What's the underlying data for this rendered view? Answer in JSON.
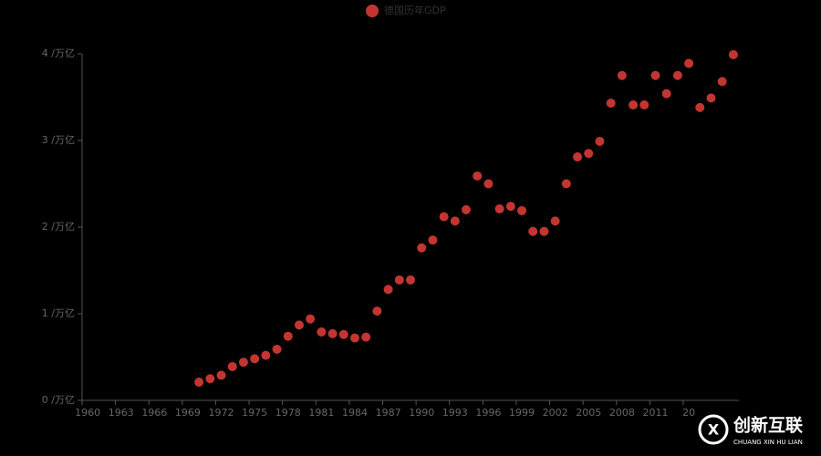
{
  "chart_data": {
    "type": "scatter",
    "categories": [
      "1960",
      null,
      null,
      "1963",
      null,
      null,
      "1966",
      null,
      null,
      "1969",
      null,
      null,
      "1972",
      null,
      null,
      "1975",
      null,
      null,
      "1978",
      null,
      null,
      "1981",
      null,
      null,
      "1984",
      null,
      null,
      "1987",
      null,
      null,
      "1990",
      null,
      null,
      "1993",
      null,
      null,
      "1996",
      null,
      null,
      "1999",
      null,
      null,
      "2002",
      null,
      null,
      "2005",
      null,
      null,
      "2008",
      null,
      null,
      "2011",
      null,
      null,
      "20",
      null,
      null,
      null,
      null
    ],
    "series": [
      {
        "name": "德国历年GDP",
        "color": "#c23531",
        "values": [
          null,
          null,
          null,
          null,
          null,
          null,
          null,
          null,
          null,
          null,
          0.21,
          0.25,
          0.29,
          0.39,
          0.44,
          0.48,
          0.52,
          0.59,
          0.74,
          0.87,
          0.94,
          0.79,
          0.77,
          0.76,
          0.72,
          0.73,
          1.03,
          1.28,
          1.39,
          1.39,
          1.76,
          1.85,
          2.12,
          2.07,
          2.2,
          2.59,
          2.5,
          2.21,
          2.24,
          2.19,
          1.95,
          1.95,
          2.07,
          2.5,
          2.81,
          2.85,
          2.99,
          3.43,
          3.75,
          3.41,
          3.41,
          3.75,
          3.54,
          3.75,
          3.89,
          3.38,
          3.49,
          3.68,
          3.99
        ]
      }
    ],
    "ylim": [
      0,
      4
    ],
    "yticks": [
      {
        "value": 0,
        "label": "0 /万亿"
      },
      {
        "value": 1,
        "label": "1 /万亿"
      },
      {
        "value": 2,
        "label": "2 /万亿"
      },
      {
        "value": 3,
        "label": "3 /万亿"
      },
      {
        "value": 4,
        "label": "4 /万亿"
      }
    ],
    "legend": "top",
    "watermark": {
      "title": "创新互联",
      "subtitle": "CHUANG XIN HU LIAN"
    }
  }
}
